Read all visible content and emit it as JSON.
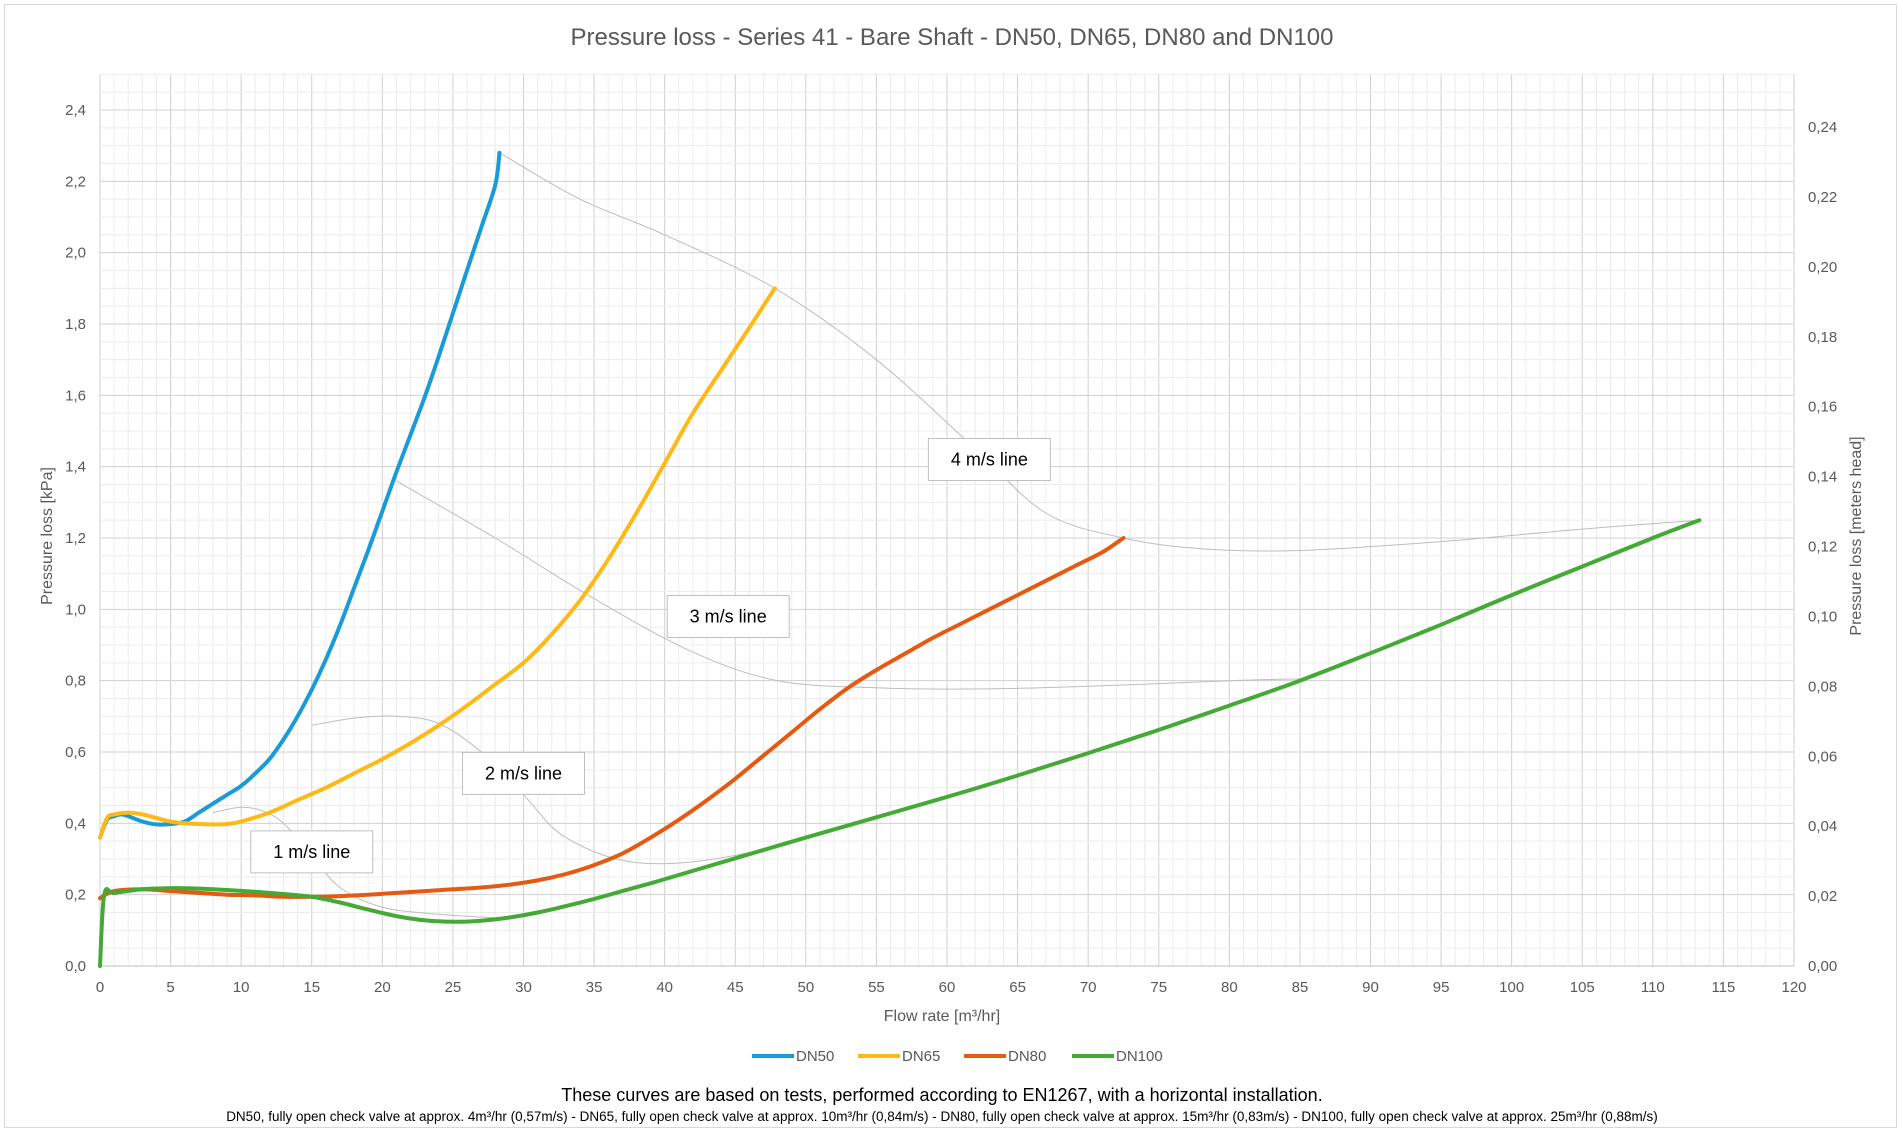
{
  "chart_data": {
    "type": "line",
    "title": "Pressure loss - Series 41 - Bare Shaft - DN50, DN65, DN80 and DN100",
    "xlabel": "Flow rate [m³/hr]",
    "ylabel": "Pressure loss [kPa]",
    "y2label": "Pressure loss [meters head]",
    "xlim": [
      0,
      120
    ],
    "ylim": [
      0,
      2.4
    ],
    "y2lim": [
      0,
      0.24
    ],
    "x_ticks": [
      "0",
      "5",
      "10",
      "15",
      "20",
      "25",
      "30",
      "35",
      "40",
      "45",
      "50",
      "55",
      "60",
      "65",
      "70",
      "75",
      "80",
      "85",
      "90",
      "95",
      "100",
      "105",
      "110",
      "115",
      "120"
    ],
    "y_ticks": [
      "0,0",
      "0,2",
      "0,4",
      "0,6",
      "0,8",
      "1,0",
      "1,2",
      "1,4",
      "1,6",
      "1,8",
      "2,0",
      "2,2",
      "2,4"
    ],
    "y2_ticks": [
      "0,00",
      "0,02",
      "0,04",
      "0,06",
      "0,08",
      "0,10",
      "0,12",
      "0,14",
      "0,16",
      "0,18",
      "0,20",
      "0,22",
      "0,24"
    ],
    "grid": true,
    "legend_position": "bottom",
    "series": [
      {
        "name": "DN50",
        "color": "#1a9bd7",
        "points": [
          [
            0,
            0.36
          ],
          [
            0.5,
            0.41
          ],
          [
            1,
            0.42
          ],
          [
            1.5,
            0.425
          ],
          [
            2,
            0.42
          ],
          [
            3,
            0.405
          ],
          [
            4,
            0.397
          ],
          [
            5,
            0.398
          ],
          [
            6,
            0.405
          ],
          [
            7,
            0.43
          ],
          [
            8,
            0.455
          ],
          [
            9,
            0.48
          ],
          [
            10,
            0.505
          ],
          [
            11,
            0.54
          ],
          [
            12,
            0.58
          ],
          [
            13,
            0.635
          ],
          [
            14,
            0.7
          ],
          [
            15,
            0.775
          ],
          [
            16,
            0.86
          ],
          [
            17,
            0.955
          ],
          [
            18,
            1.06
          ],
          [
            19,
            1.165
          ],
          [
            20,
            1.275
          ],
          [
            21,
            1.385
          ],
          [
            22,
            1.49
          ],
          [
            23,
            1.595
          ],
          [
            24,
            1.71
          ],
          [
            25,
            1.83
          ],
          [
            26,
            1.95
          ],
          [
            27,
            2.07
          ],
          [
            28,
            2.19
          ],
          [
            28.3,
            2.28
          ]
        ]
      },
      {
        "name": "DN65",
        "color": "#ffb916",
        "points": [
          [
            0,
            0.36
          ],
          [
            0.5,
            0.415
          ],
          [
            1,
            0.425
          ],
          [
            2,
            0.43
          ],
          [
            3,
            0.425
          ],
          [
            4,
            0.415
          ],
          [
            5,
            0.405
          ],
          [
            6,
            0.4
          ],
          [
            7,
            0.398
          ],
          [
            8,
            0.397
          ],
          [
            9,
            0.398
          ],
          [
            10,
            0.405
          ],
          [
            12,
            0.43
          ],
          [
            14,
            0.465
          ],
          [
            16,
            0.5
          ],
          [
            18,
            0.54
          ],
          [
            20,
            0.58
          ],
          [
            22,
            0.625
          ],
          [
            24,
            0.675
          ],
          [
            26,
            0.73
          ],
          [
            28,
            0.79
          ],
          [
            30,
            0.85
          ],
          [
            32,
            0.93
          ],
          [
            34,
            1.025
          ],
          [
            36,
            1.14
          ],
          [
            38,
            1.27
          ],
          [
            40,
            1.41
          ],
          [
            42,
            1.55
          ],
          [
            44,
            1.67
          ],
          [
            46,
            1.79
          ],
          [
            47.8,
            1.9
          ]
        ]
      },
      {
        "name": "DN80",
        "color": "#e55a11",
        "points": [
          [
            0,
            0.19
          ],
          [
            1,
            0.21
          ],
          [
            3,
            0.215
          ],
          [
            5,
            0.21
          ],
          [
            7,
            0.205
          ],
          [
            9,
            0.2
          ],
          [
            11,
            0.198
          ],
          [
            13,
            0.194
          ],
          [
            15,
            0.194
          ],
          [
            17,
            0.196
          ],
          [
            19,
            0.2
          ],
          [
            21,
            0.205
          ],
          [
            23,
            0.21
          ],
          [
            25,
            0.215
          ],
          [
            27,
            0.22
          ],
          [
            29,
            0.228
          ],
          [
            31,
            0.24
          ],
          [
            33,
            0.258
          ],
          [
            35,
            0.283
          ],
          [
            37,
            0.315
          ],
          [
            39,
            0.36
          ],
          [
            41,
            0.41
          ],
          [
            43,
            0.465
          ],
          [
            45,
            0.525
          ],
          [
            47,
            0.59
          ],
          [
            49,
            0.655
          ],
          [
            51,
            0.72
          ],
          [
            53,
            0.78
          ],
          [
            55,
            0.83
          ],
          [
            57,
            0.875
          ],
          [
            59,
            0.92
          ],
          [
            61,
            0.96
          ],
          [
            63,
            1.0
          ],
          [
            65,
            1.04
          ],
          [
            67,
            1.08
          ],
          [
            69,
            1.12
          ],
          [
            71,
            1.16
          ],
          [
            72.5,
            1.2
          ]
        ]
      },
      {
        "name": "DN100",
        "color": "#44a935",
        "points": [
          [
            0,
            0.0
          ],
          [
            0.3,
            0.2
          ],
          [
            1,
            0.205
          ],
          [
            3,
            0.215
          ],
          [
            5,
            0.218
          ],
          [
            7,
            0.217
          ],
          [
            9,
            0.213
          ],
          [
            11,
            0.208
          ],
          [
            13,
            0.202
          ],
          [
            15,
            0.194
          ],
          [
            17,
            0.178
          ],
          [
            19,
            0.158
          ],
          [
            21,
            0.14
          ],
          [
            23,
            0.128
          ],
          [
            25,
            0.124
          ],
          [
            27,
            0.127
          ],
          [
            29,
            0.136
          ],
          [
            31,
            0.15
          ],
          [
            33,
            0.168
          ],
          [
            35,
            0.188
          ],
          [
            37,
            0.21
          ],
          [
            39,
            0.232
          ],
          [
            41,
            0.255
          ],
          [
            45,
            0.302
          ],
          [
            50,
            0.36
          ],
          [
            55,
            0.417
          ],
          [
            60,
            0.474
          ],
          [
            65,
            0.534
          ],
          [
            70,
            0.597
          ],
          [
            75,
            0.662
          ],
          [
            80,
            0.73
          ],
          [
            85,
            0.8
          ],
          [
            90,
            0.877
          ],
          [
            95,
            0.957
          ],
          [
            100,
            1.04
          ],
          [
            105,
            1.12
          ],
          [
            110,
            1.2
          ],
          [
            113.3,
            1.25
          ]
        ]
      }
    ],
    "annotations": [
      {
        "text": "4 m/s line",
        "connector": [
          [
            28.3,
            2.28
          ],
          [
            34,
            2.15
          ],
          [
            40,
            2.05
          ],
          [
            47.8,
            1.9
          ],
          [
            55,
            1.7
          ],
          [
            62,
            1.45
          ],
          [
            67,
            1.27
          ],
          [
            72.5,
            1.2
          ],
          [
            78,
            1.17
          ],
          [
            85,
            1.165
          ],
          [
            95,
            1.19
          ],
          [
            105,
            1.225
          ],
          [
            113.3,
            1.25
          ]
        ]
      },
      {
        "text": "3 m/s line",
        "connector": [
          [
            21,
            1.36
          ],
          [
            28,
            1.2
          ],
          [
            35,
            1.03
          ],
          [
            42,
            0.88
          ],
          [
            48,
            0.8
          ],
          [
            55,
            0.78
          ],
          [
            63,
            0.777
          ],
          [
            72,
            0.787
          ],
          [
            80,
            0.8
          ],
          [
            85,
            0.805
          ]
        ]
      },
      {
        "text": "2 m/s line",
        "connector": [
          [
            15,
            0.675
          ],
          [
            18,
            0.695
          ],
          [
            21,
            0.7
          ],
          [
            24,
            0.68
          ],
          [
            27,
            0.6
          ],
          [
            30,
            0.48
          ],
          [
            33,
            0.36
          ],
          [
            38,
            0.29
          ],
          [
            45,
            0.31
          ],
          [
            55,
            0.415
          ]
        ]
      },
      {
        "text": "1 m/s line",
        "connector": [
          [
            8,
            0.43
          ],
          [
            10,
            0.445
          ],
          [
            11.5,
            0.435
          ],
          [
            13,
            0.4
          ],
          [
            15,
            0.31
          ],
          [
            17,
            0.22
          ],
          [
            20,
            0.165
          ],
          [
            24,
            0.145
          ],
          [
            28,
            0.135
          ]
        ]
      }
    ],
    "footnote": "These curves are based on tests, performed according to EN1267, with a horizontal installation.",
    "footnote_detail": "DN50, fully open check valve at approx. 4m³/hr (0,57m/s) - DN65, fully open check valve at approx. 10m³/hr (0,84m/s) - DN80, fully open check valve at approx. 15m³/hr (0,83m/s) - DN100, fully open check valve at approx. 25m³/hr (0,88m/s)"
  }
}
